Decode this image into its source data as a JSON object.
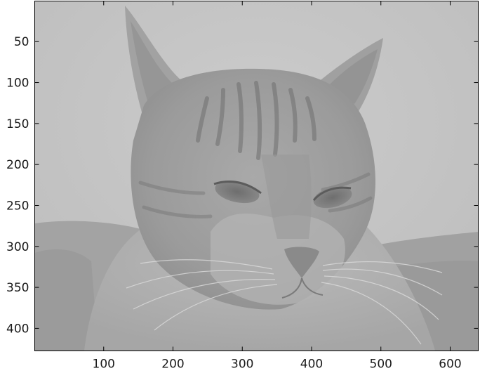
{
  "image": {
    "subject": "cat",
    "description": "Grayscale, low-contrast photograph of a tabby cat's face with ears up and half-closed eyes",
    "colormap": "gray"
  },
  "axes": {
    "x_ticks": [
      100,
      200,
      300,
      400,
      500,
      600
    ],
    "y_ticks": [
      50,
      100,
      150,
      200,
      250,
      300,
      350,
      400
    ],
    "x_range": [
      0.5,
      640.5
    ],
    "y_range": [
      0.5,
      427.5
    ],
    "y_direction": "down",
    "grid": false
  },
  "colors": {
    "background_light": "#c6c6c6",
    "fur_mid": "#9c9c9c",
    "fur_dark": "#7c7c7c",
    "axis_line": "#000000",
    "tick_text": "#1a1a1a"
  }
}
